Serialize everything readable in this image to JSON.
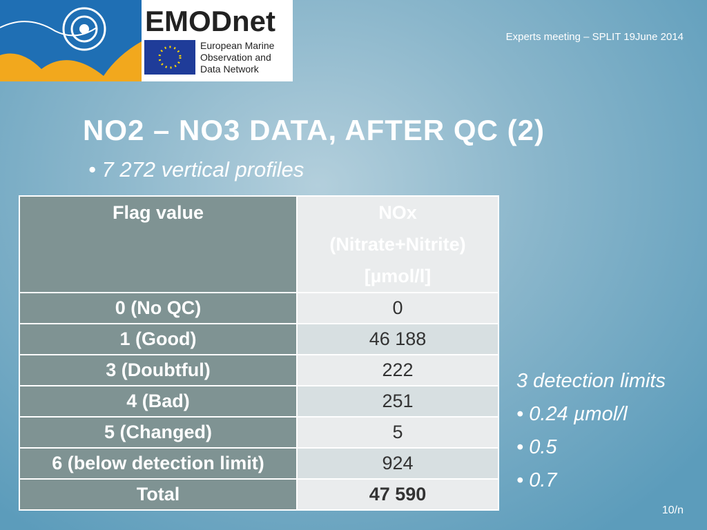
{
  "logo": {
    "name": "EMODnet",
    "subtitle_lines": [
      "European Marine",
      "Observation and",
      "Data Network"
    ]
  },
  "header": {
    "meeting": "Experts meeting – SPLIT 19June 2014"
  },
  "title": "NO2 – NO3 DATA, AFTER QC (2)",
  "bullet": "7 272 vertical profiles",
  "table": {
    "header": [
      "Flag value",
      [
        "NOx",
        "(Nitrate+Nitrite)",
        "[µmol/l]"
      ]
    ],
    "rows": [
      [
        "0 (No QC)",
        "0"
      ],
      [
        "1 (Good)",
        "46 188"
      ],
      [
        "3 (Doubtful)",
        "222"
      ],
      [
        "4 (Bad)",
        "251"
      ],
      [
        "5 (Changed)",
        "5"
      ],
      [
        "6 (below detection limit)",
        "924"
      ],
      [
        "Total",
        "47 590"
      ]
    ]
  },
  "side": {
    "heading": "3 detection limits",
    "items": [
      "0.24 µmol/l",
      "0.5",
      "0.7"
    ]
  },
  "footer": {
    "page": "10/n"
  }
}
